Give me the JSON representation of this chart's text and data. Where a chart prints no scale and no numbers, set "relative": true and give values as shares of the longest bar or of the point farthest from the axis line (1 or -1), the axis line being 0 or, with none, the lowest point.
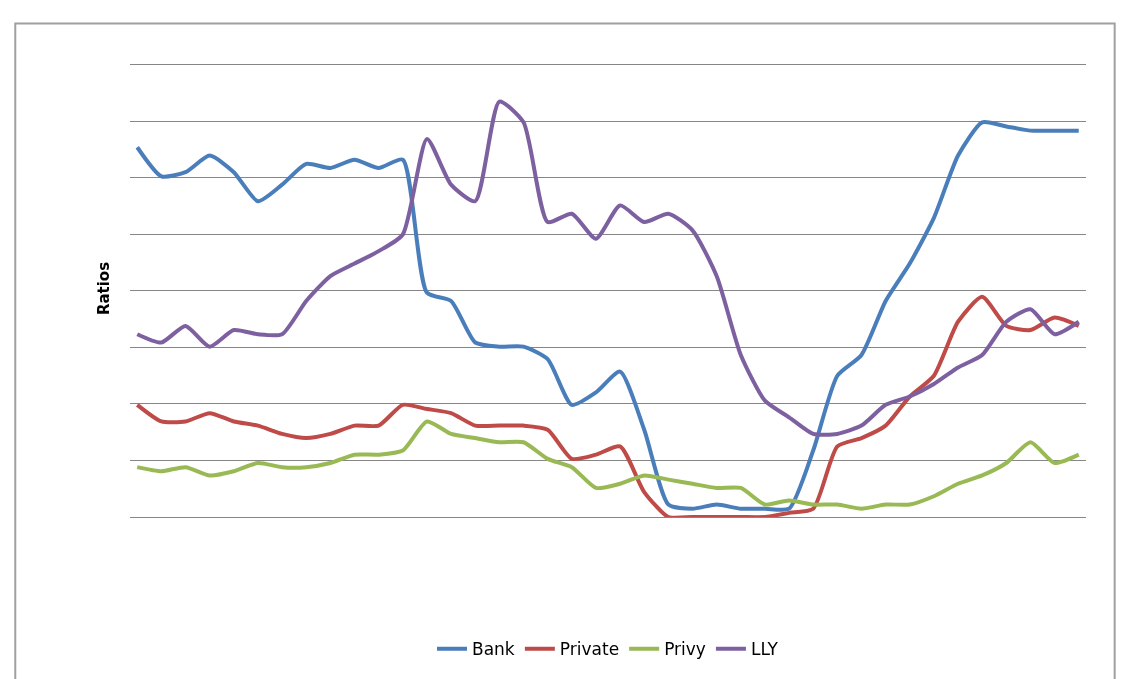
{
  "chart_data": {
    "type": "line",
    "ylabel": "Ratios",
    "relative": true,
    "grid": "y",
    "legend": "bottom",
    "categories": [
      null,
      null,
      null,
      null,
      null,
      null,
      null,
      null,
      null,
      null,
      null,
      null,
      null,
      null,
      null,
      null,
      null,
      null,
      null,
      null,
      null,
      null,
      null,
      null,
      null,
      null,
      null,
      null,
      null,
      null,
      null,
      null,
      null,
      null,
      null,
      null,
      null,
      null,
      null,
      null
    ],
    "series": [
      {
        "name": "Bank",
        "color": "#4a7ebb",
        "values": [
          0.89,
          0.82,
          0.83,
          0.87,
          0.83,
          0.76,
          0.8,
          0.85,
          0.84,
          0.86,
          0.84,
          0.86,
          0.54,
          0.52,
          0.42,
          0.41,
          0.41,
          0.38,
          0.27,
          0.3,
          0.35,
          0.21,
          0.03,
          0.02,
          0.03,
          0.02,
          0.02,
          0.02,
          0.16,
          0.34,
          0.39,
          0.52,
          0.61,
          0.72,
          0.87,
          0.95,
          0.94,
          0.93,
          0.93,
          0.93
        ]
      },
      {
        "name": "Private",
        "color": "#be4b48",
        "values": [
          0.27,
          0.23,
          0.23,
          0.25,
          0.23,
          0.22,
          0.2,
          0.19,
          0.2,
          0.22,
          0.22,
          0.27,
          0.26,
          0.25,
          0.22,
          0.22,
          0.22,
          0.21,
          0.14,
          0.15,
          0.17,
          0.06,
          0,
          0,
          0,
          0,
          0,
          0.01,
          0.02,
          0.17,
          0.19,
          0.22,
          0.29,
          0.34,
          0.47,
          0.53,
          0.46,
          0.45,
          0.48,
          0.46
        ]
      },
      {
        "name": "Privy",
        "color": "#98b954",
        "values": [
          0.12,
          0.11,
          0.12,
          0.1,
          0.11,
          0.13,
          0.12,
          0.12,
          0.13,
          0.15,
          0.15,
          0.16,
          0.23,
          0.2,
          0.19,
          0.18,
          0.18,
          0.14,
          0.12,
          0.07,
          0.08,
          0.1,
          0.09,
          0.08,
          0.07,
          0.07,
          0.03,
          0.04,
          0.03,
          0.03,
          0.02,
          0.03,
          0.03,
          0.05,
          0.08,
          0.1,
          0.13,
          0.18,
          0.13,
          0.15
        ]
      },
      {
        "name": "LLY",
        "color": "#7d60a0",
        "values": [
          0.44,
          0.42,
          0.46,
          0.41,
          0.45,
          0.44,
          0.44,
          0.52,
          0.58,
          0.61,
          0.64,
          0.68,
          0.91,
          0.8,
          0.76,
          1.0,
          0.95,
          0.71,
          0.73,
          0.67,
          0.75,
          0.71,
          0.73,
          0.69,
          0.58,
          0.39,
          0.28,
          0.24,
          0.2,
          0.2,
          0.22,
          0.27,
          0.29,
          0.32,
          0.36,
          0.39,
          0.47,
          0.5,
          0.44,
          0.47
        ]
      }
    ]
  }
}
